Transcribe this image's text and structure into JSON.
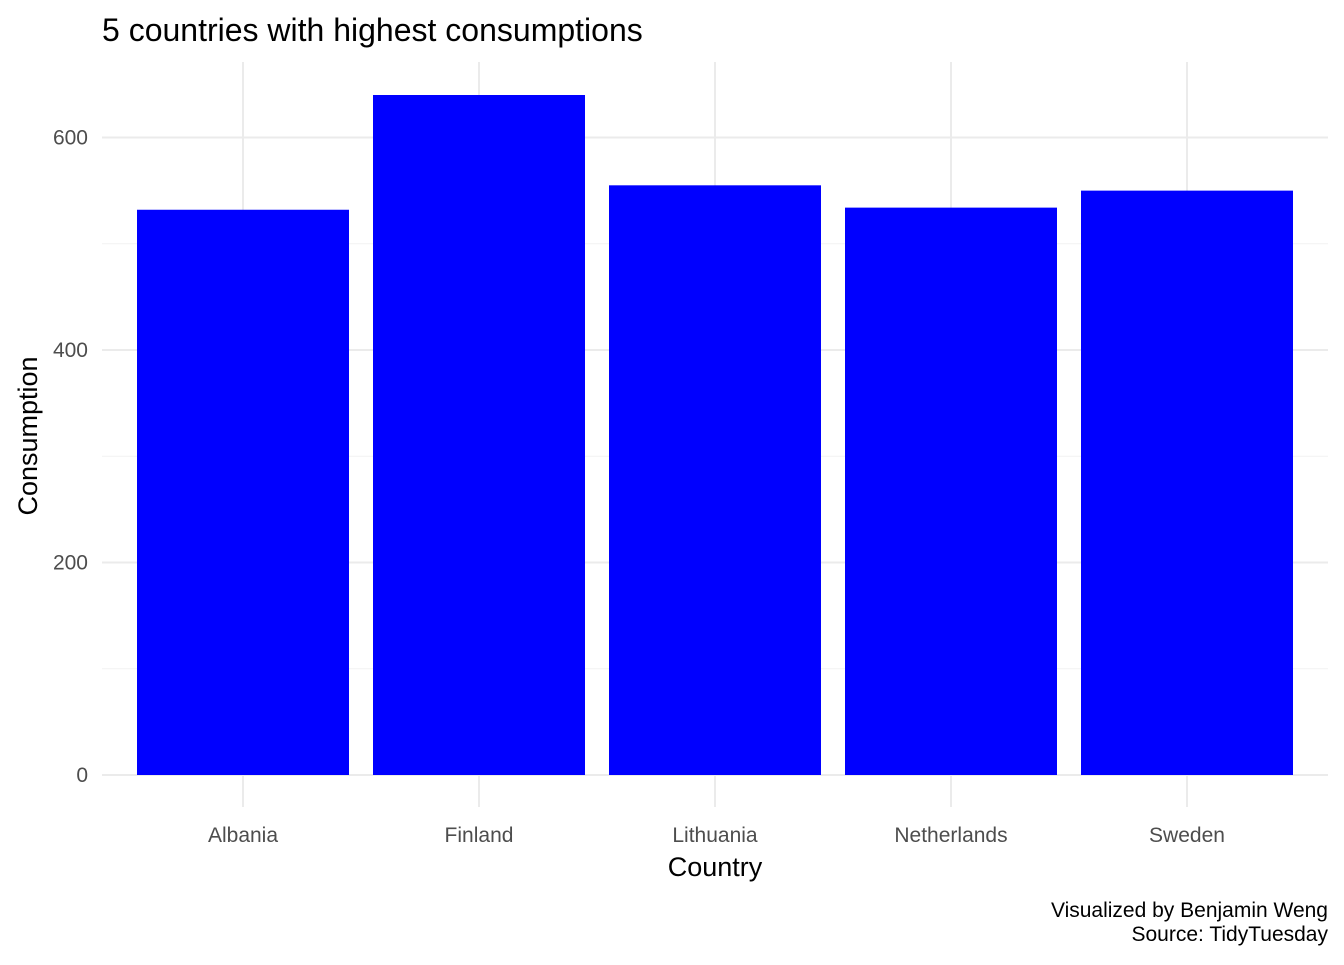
{
  "chart_data": {
    "type": "bar",
    "title": "5 countries with highest consumptions",
    "xlabel": "Country",
    "ylabel": "Consumption",
    "categories": [
      "Albania",
      "Finland",
      "Lithuania",
      "Netherlands",
      "Sweden"
    ],
    "values": [
      532,
      640,
      555,
      534,
      550
    ],
    "ylim": [
      0,
      672
    ],
    "yticks": [
      0,
      200,
      400,
      600
    ],
    "grid": true,
    "bar_color": "#0000ff",
    "caption": [
      "Visualized by Benjamin Weng",
      "Source: TidyTuesday"
    ]
  }
}
